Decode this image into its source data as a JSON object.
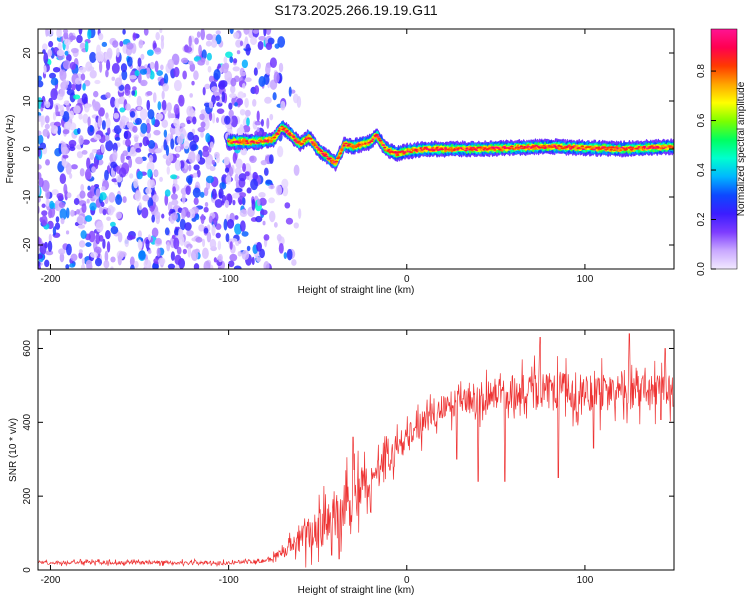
{
  "figure_title": "S173.2025.266.19.19.G11",
  "chart_data": [
    {
      "type": "heatmap",
      "title": "S173.2025.266.19.19.G11",
      "xlabel": "Height of straight line (km)",
      "ylabel": "Frequency (Hz)",
      "xlim": [
        -207,
        150
      ],
      "ylim": [
        -25,
        25
      ],
      "xticks": [
        -200,
        -100,
        0,
        100
      ],
      "yticks": [
        -20,
        -10,
        0,
        10,
        20
      ],
      "colorbar": {
        "label": "Normalized spectral amplitude",
        "range": [
          0.0,
          0.97
        ],
        "ticks": [
          0.0,
          0.2,
          0.4,
          0.6,
          0.8
        ],
        "colormap": [
          "#f2e9ff",
          "#c9a8ff",
          "#7d3cff",
          "#3b1dff",
          "#0d48ff",
          "#00b7ff",
          "#00ffcf",
          "#00ff60",
          "#7cff00",
          "#ffff00",
          "#ffa500",
          "#ff3a00",
          "#ff0050",
          "#ff1493"
        ]
      },
      "noise_region_x": [
        -207,
        -70
      ],
      "noise_level": 0.28,
      "tone_track": [
        {
          "x": -100,
          "f": 1.5
        },
        {
          "x": -85,
          "f": 1.5
        },
        {
          "x": -75,
          "f": 2.0
        },
        {
          "x": -70,
          "f": 4.5
        },
        {
          "x": -65,
          "f": 3.0
        },
        {
          "x": -60,
          "f": 1.0
        },
        {
          "x": -55,
          "f": 2.5
        },
        {
          "x": -50,
          "f": 0.0
        },
        {
          "x": -45,
          "f": -1.5
        },
        {
          "x": -40,
          "f": -3.0
        },
        {
          "x": -35,
          "f": 1.0
        },
        {
          "x": -30,
          "f": 0.5
        },
        {
          "x": -25,
          "f": 1.0
        },
        {
          "x": -20,
          "f": 1.5
        },
        {
          "x": -17,
          "f": 3.0
        },
        {
          "x": -12,
          "f": 0.0
        },
        {
          "x": -5,
          "f": -1.0
        },
        {
          "x": 0,
          "f": -0.5
        },
        {
          "x": 10,
          "f": 0.0
        },
        {
          "x": 40,
          "f": 0.0
        },
        {
          "x": 80,
          "f": 0.5
        },
        {
          "x": 120,
          "f": 0.0
        },
        {
          "x": 150,
          "f": 0.5
        }
      ],
      "tone_amplitude": 0.9
    },
    {
      "type": "line",
      "xlabel": "Height of straight line (km)",
      "ylabel": "SNR (10 * v/v)",
      "xlim": [
        -207,
        150
      ],
      "ylim": [
        0,
        650
      ],
      "xticks": [
        -200,
        -100,
        0,
        100
      ],
      "yticks": [
        0,
        200,
        400,
        600
      ],
      "color": "#ee3333",
      "envelope": [
        {
          "x": -207,
          "mean": 20,
          "spread": 8
        },
        {
          "x": -100,
          "mean": 20,
          "spread": 8
        },
        {
          "x": -80,
          "mean": 25,
          "spread": 10
        },
        {
          "x": -70,
          "mean": 45,
          "spread": 20
        },
        {
          "x": -60,
          "mean": 80,
          "spread": 60
        },
        {
          "x": -50,
          "mean": 110,
          "spread": 90
        },
        {
          "x": -40,
          "mean": 150,
          "spread": 120
        },
        {
          "x": -30,
          "mean": 190,
          "spread": 110
        },
        {
          "x": -20,
          "mean": 240,
          "spread": 90
        },
        {
          "x": -10,
          "mean": 300,
          "spread": 70
        },
        {
          "x": 0,
          "mean": 360,
          "spread": 60
        },
        {
          "x": 10,
          "mean": 400,
          "spread": 60
        },
        {
          "x": 20,
          "mean": 440,
          "spread": 60
        },
        {
          "x": 40,
          "mean": 470,
          "spread": 70
        },
        {
          "x": 60,
          "mean": 480,
          "spread": 80
        },
        {
          "x": 80,
          "mean": 485,
          "spread": 90
        },
        {
          "x": 100,
          "mean": 480,
          "spread": 90
        },
        {
          "x": 120,
          "mean": 480,
          "spread": 80
        },
        {
          "x": 150,
          "mean": 485,
          "spread": 70
        }
      ],
      "dropouts": [
        {
          "x": 28,
          "y": 300
        },
        {
          "x": 40,
          "y": 240
        },
        {
          "x": 55,
          "y": 240
        },
        {
          "x": 75,
          "y": 230
        },
        {
          "x": 85,
          "y": 250
        },
        {
          "x": 105,
          "y": 330
        },
        {
          "x": -38,
          "y": 30
        },
        {
          "x": -42,
          "y": 40
        }
      ],
      "peaks": [
        {
          "x": -30,
          "y": 360
        },
        {
          "x": 75,
          "y": 630
        },
        {
          "x": 125,
          "y": 640
        },
        {
          "x": 145,
          "y": 600
        }
      ]
    }
  ]
}
